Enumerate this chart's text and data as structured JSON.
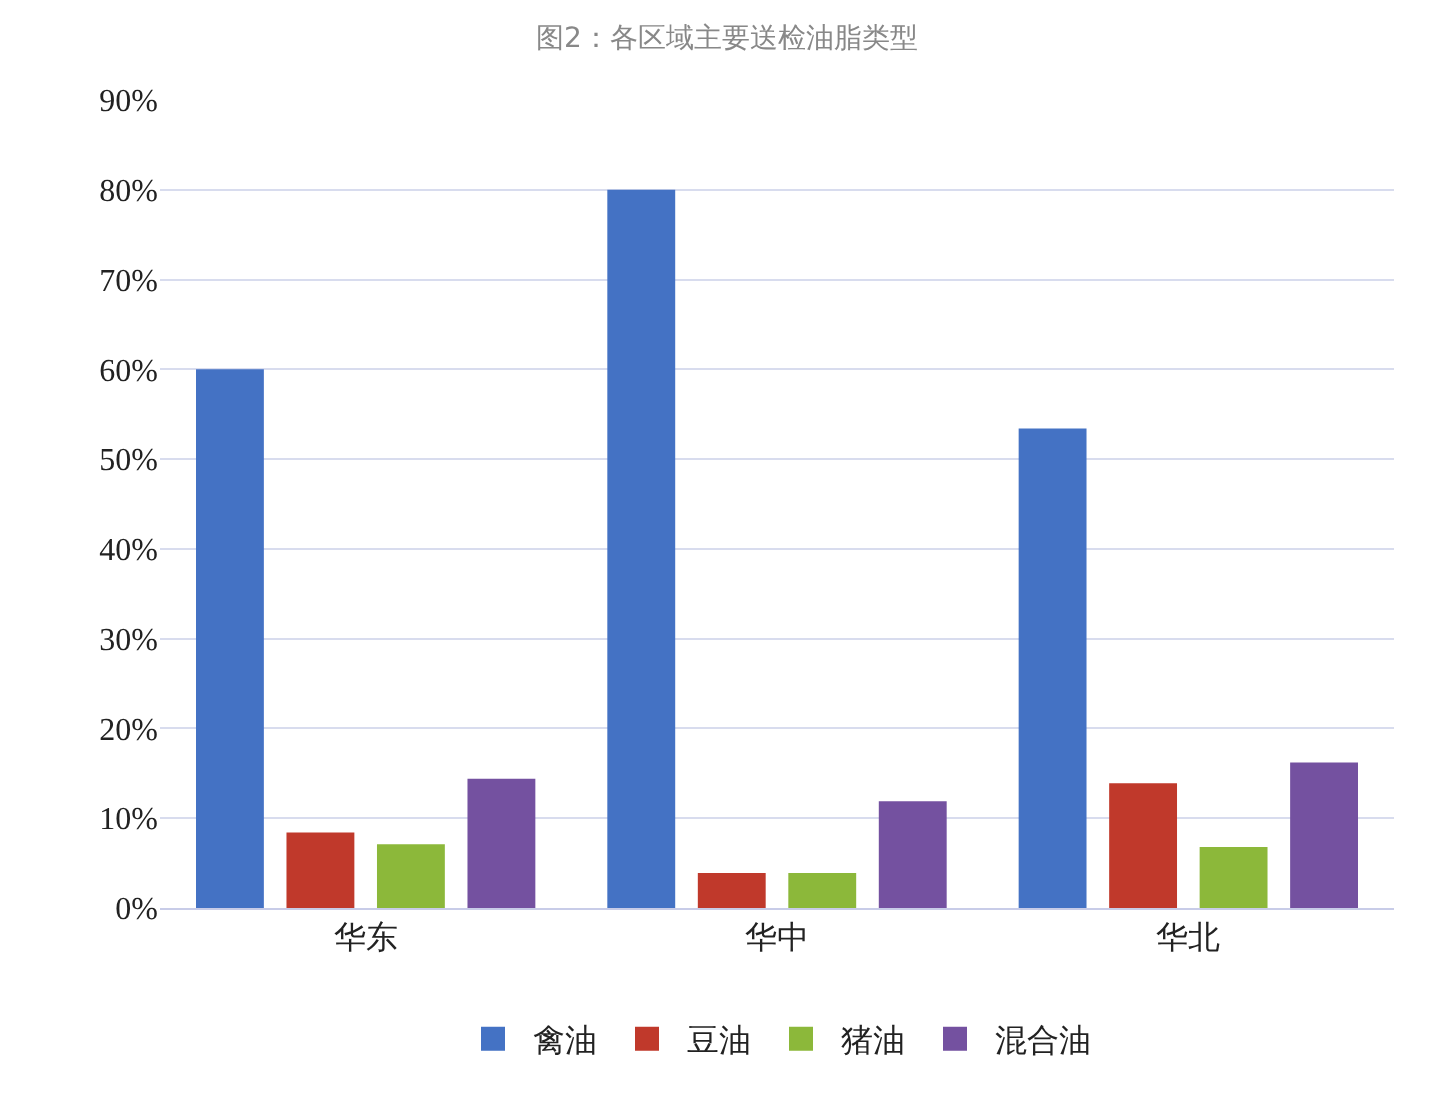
{
  "chart_data": {
    "type": "bar",
    "title": "图2：各区域主要送检油脂类型",
    "categories": [
      "华东",
      "华中",
      "华北"
    ],
    "series": [
      {
        "name": "禽油",
        "color": "#4472c4",
        "values": [
          60.0,
          80.0,
          53.4
        ]
      },
      {
        "name": "豆油",
        "color": "#c0392b",
        "values": [
          8.4,
          3.9,
          13.9
        ]
      },
      {
        "name": "猪油",
        "color": "#8cb83a",
        "values": [
          7.1,
          3.9,
          6.8
        ]
      },
      {
        "name": "混合油",
        "color": "#7451a0",
        "values": [
          14.4,
          11.9,
          16.2
        ]
      }
    ],
    "ylim": [
      0,
      90
    ],
    "yticks": [
      {
        "value": 0,
        "label": "0%"
      },
      {
        "value": 10,
        "label": "10%"
      },
      {
        "value": 20,
        "label": "20%"
      },
      {
        "value": 30,
        "label": "30%"
      },
      {
        "value": 40,
        "label": "40%"
      },
      {
        "value": 50,
        "label": "50%"
      },
      {
        "value": 60,
        "label": "60%"
      },
      {
        "value": 70,
        "label": "70%"
      },
      {
        "value": 80,
        "label": "80%"
      },
      {
        "value": 90,
        "label": "90%"
      }
    ],
    "grid": "y",
    "legend": "bottom"
  }
}
